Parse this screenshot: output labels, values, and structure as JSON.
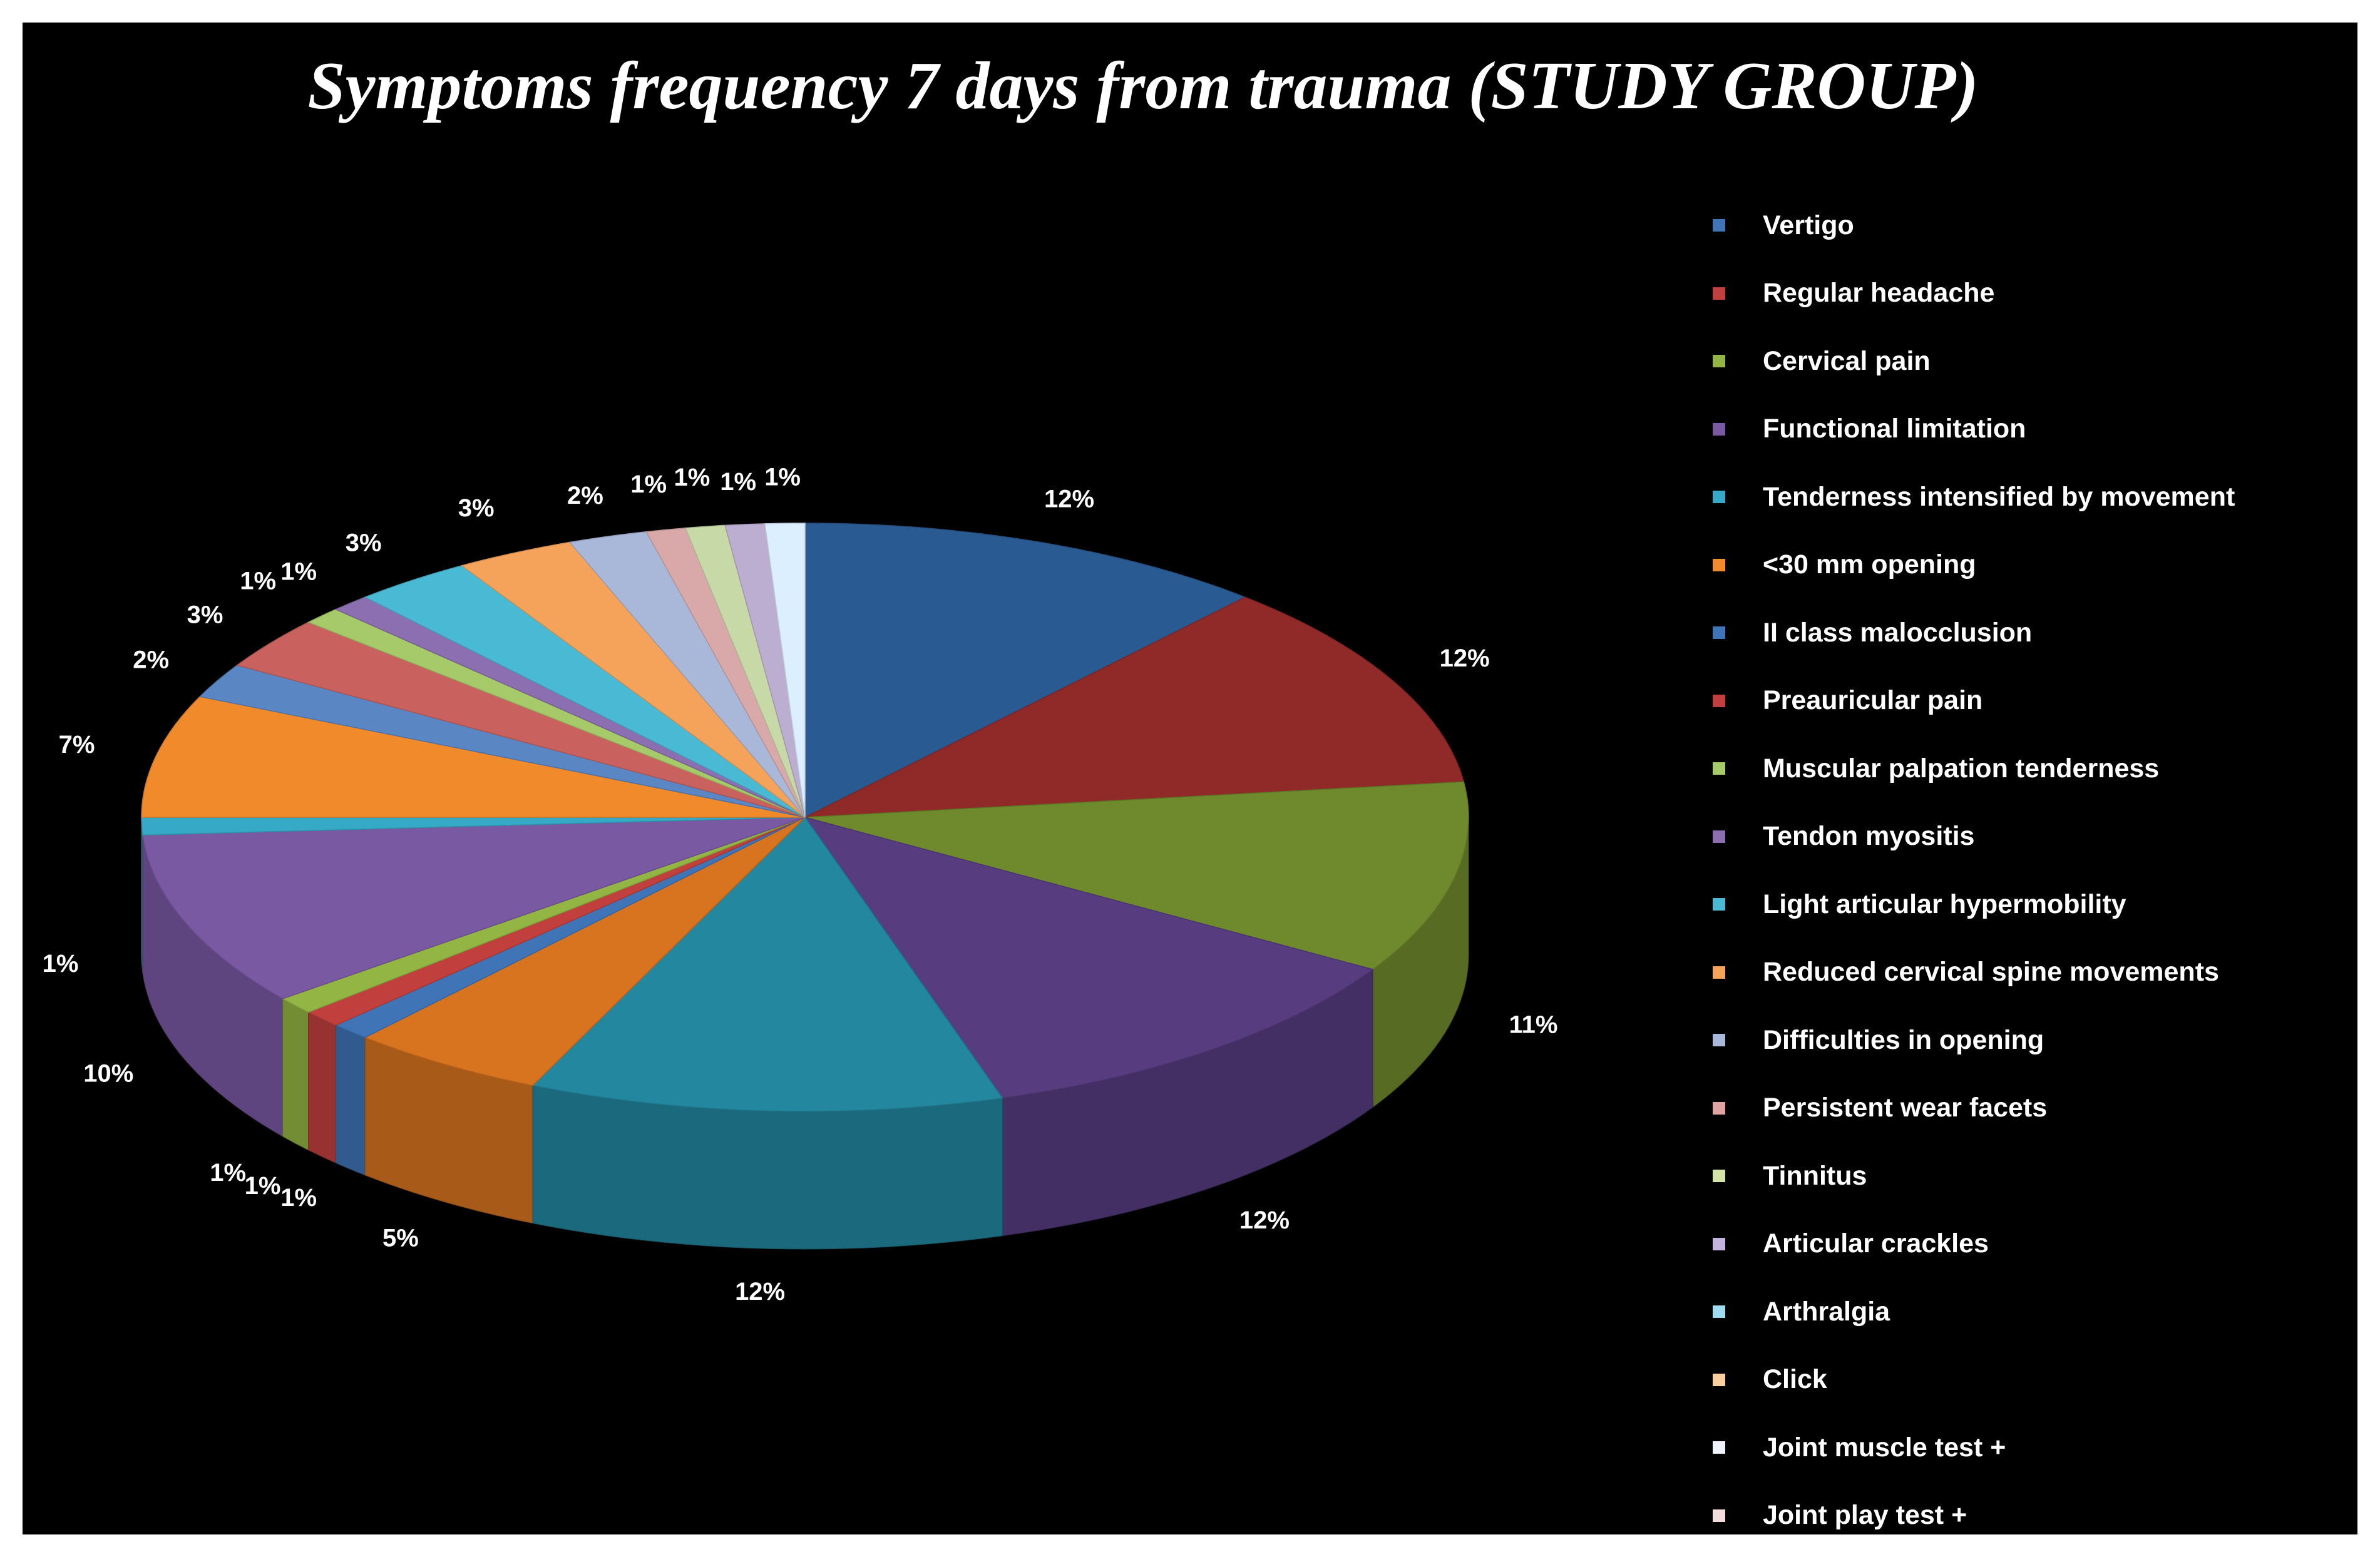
{
  "chart_data": {
    "type": "pie",
    "title": "Symptoms frequency 7 days from trauma (STUDY GROUP)",
    "legend_position": "right",
    "slices": [
      {
        "label": "Vertigo",
        "value": 12,
        "display": "12%",
        "color": "#2a5a92"
      },
      {
        "label": "Regular headache",
        "value": 12,
        "display": "12%",
        "color": "#8f2a29"
      },
      {
        "label": "Cervical pain",
        "value": 11,
        "display": "11%",
        "color": "#6f8a2c"
      },
      {
        "label": "Functional limitation",
        "value": 12,
        "display": "12%",
        "color": "#573c80"
      },
      {
        "label": "Tenderness intensified by movement",
        "value": 12,
        "display": "12%",
        "color": "#23879f"
      },
      {
        "label": "<30 mm opening",
        "value": 5,
        "display": "5%",
        "color": "#d8731f"
      },
      {
        "label": "II class malocclusion",
        "value": 1,
        "display": "1%",
        "color": "#3f74b6"
      },
      {
        "label": "Preauricular pain",
        "value": 1,
        "display": "1%",
        "color": "#c1403d"
      },
      {
        "label": "Muscular palpation tenderness",
        "value": 1,
        "display": "1%",
        "color": "#93b544"
      },
      {
        "label": "Tendon myositis",
        "value": 10,
        "display": "10%",
        "color": "#7a59a3"
      },
      {
        "label": "Light articular hypermobility",
        "value": 1,
        "display": "1%",
        "color": "#35a9c6"
      },
      {
        "label": "Reduced cervical spine movements",
        "value": 7,
        "display": "7%",
        "color": "#f08a2a"
      },
      {
        "label": "Difficulties in opening",
        "value": 2,
        "display": "2%",
        "color": "#5b86c4"
      },
      {
        "label": "Persistent wear facets",
        "value": 3,
        "display": "3%",
        "color": "#c9625f"
      },
      {
        "label": "Tinnitus",
        "value": 1,
        "display": "1%",
        "color": "#a6c96a"
      },
      {
        "label": "Articular crackles",
        "value": 1,
        "display": "1%",
        "color": "#8b6fb0"
      },
      {
        "label": "Arthralgia",
        "value": 3,
        "display": "3%",
        "color": "#4ab9d4"
      },
      {
        "label": "Click",
        "value": 3,
        "display": "3%",
        "color": "#f5a35a"
      },
      {
        "label": "Joint muscle test +",
        "value": 2,
        "display": "2%",
        "color": "#a9b8d8"
      },
      {
        "label": "Joint play test +",
        "value": 1,
        "display": "1%",
        "color": "#d8a9a8"
      },
      {
        "label": "",
        "value": 1,
        "display": "1%",
        "color": "#c8d9a8"
      },
      {
        "label": "",
        "value": 1,
        "display": "1%",
        "color": "#bcaed0"
      },
      {
        "label": "",
        "value": 1,
        "display": "1%",
        "color": "#dcefff"
      }
    ],
    "legend": [
      {
        "label": "Vertigo",
        "color": "#3f74b6"
      },
      {
        "label": "Regular headache",
        "color": "#c1403d"
      },
      {
        "label": "Cervical pain",
        "color": "#93b544"
      },
      {
        "label": "Functional limitation",
        "color": "#7a59a3"
      },
      {
        "label": "Tenderness intensified by movement",
        "color": "#35a9c6"
      },
      {
        "label": "<30 mm opening",
        "color": "#f08a2a"
      },
      {
        "label": "II class malocclusion",
        "color": "#3f74b6"
      },
      {
        "label": "Preauricular pain",
        "color": "#c1403d"
      },
      {
        "label": "Muscular palpation tenderness",
        "color": "#a6c96a"
      },
      {
        "label": "Tendon myositis",
        "color": "#8b6fb0"
      },
      {
        "label": "Light articular hypermobility",
        "color": "#4ab9d4"
      },
      {
        "label": "Reduced cervical spine movements",
        "color": "#f5a35a"
      },
      {
        "label": "Difficulties in opening",
        "color": "#a9b8d8"
      },
      {
        "label": "Persistent wear facets",
        "color": "#e0a3a2"
      },
      {
        "label": "Tinnitus",
        "color": "#d3e4a8"
      },
      {
        "label": "Articular crackles",
        "color": "#c4b3dd"
      },
      {
        "label": "Arthralgia",
        "color": "#9fdcf0"
      },
      {
        "label": "Click",
        "color": "#f9cf9f"
      },
      {
        "label": "Joint muscle test +",
        "color": "#eef2fa"
      },
      {
        "label": "Joint play test +",
        "color": "#f2dcdc"
      }
    ]
  }
}
